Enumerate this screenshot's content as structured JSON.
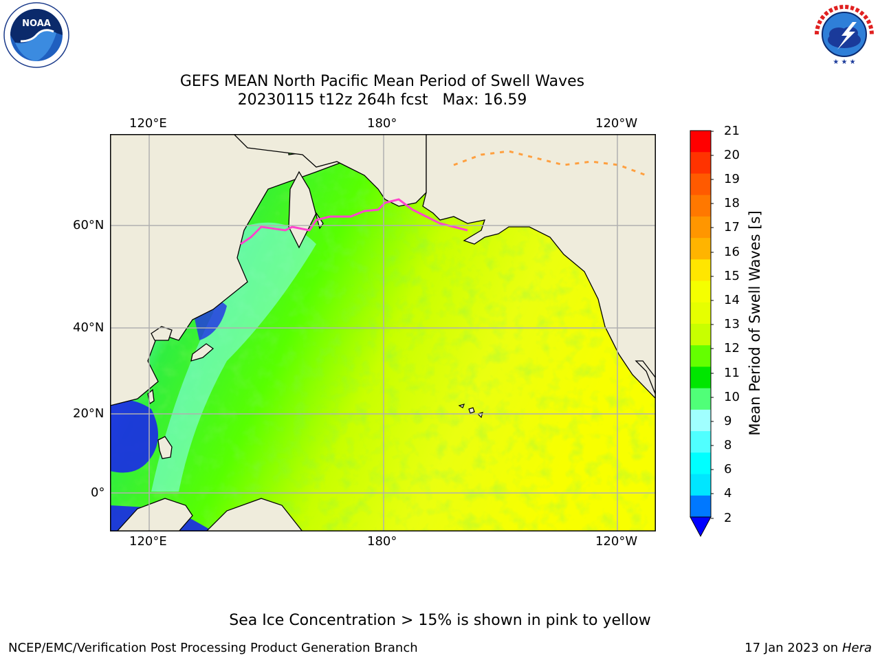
{
  "title": {
    "line1": "GEFS MEAN North Pacific Mean Period of Swell Waves",
    "line2": "20230115 t12z 264h fcst   Max: 16.59"
  },
  "axes": {
    "top_ticks": [
      "120°E",
      "180°",
      "120°W"
    ],
    "bottom_ticks": [
      "120°E",
      "180°",
      "120°W"
    ],
    "left_ticks": [
      "60°N",
      "40°N",
      "20°N",
      "0°"
    ]
  },
  "colorbar": {
    "label": "Mean Period of Swell Waves [s]",
    "ticks": [
      "21",
      "20",
      "19",
      "18",
      "17",
      "16",
      "15",
      "14",
      "13",
      "12",
      "11",
      "10",
      "9",
      "8",
      "6",
      "4",
      "2"
    ],
    "colors": [
      "#ff0000",
      "#ff3300",
      "#ff5a00",
      "#ff7800",
      "#ff9600",
      "#ffb400",
      "#ffe600",
      "#f5ff00",
      "#e6ff00",
      "#c8ff00",
      "#64ff00",
      "#00e600",
      "#50ff78",
      "#a0ffff",
      "#50ffff",
      "#00ffff",
      "#00e6ff",
      "#0078ff",
      "#0000ff"
    ]
  },
  "colors": {
    "land": "#efecdc",
    "grid": "#b0b0b0",
    "ice_edge": "#ff44cc"
  },
  "icons": {
    "noaa": "noaa-logo",
    "nws": "nws-logo"
  },
  "logos": {
    "noaa_text": "NOAA",
    "noaa_ring": "NATIONAL OCEANIC AND ATMOSPHERIC ADMINISTRATION",
    "nws_ring": "NATIONAL WEATHER SERVICE"
  },
  "footer": {
    "note": "Sea Ice Concentration > 15% is shown in pink to yellow",
    "credit_left": "NCEP/EMC/Verification Post Processing Product Generation Branch",
    "credit_date": "17 Jan 2023 on ",
    "credit_machine": "Hera"
  }
}
